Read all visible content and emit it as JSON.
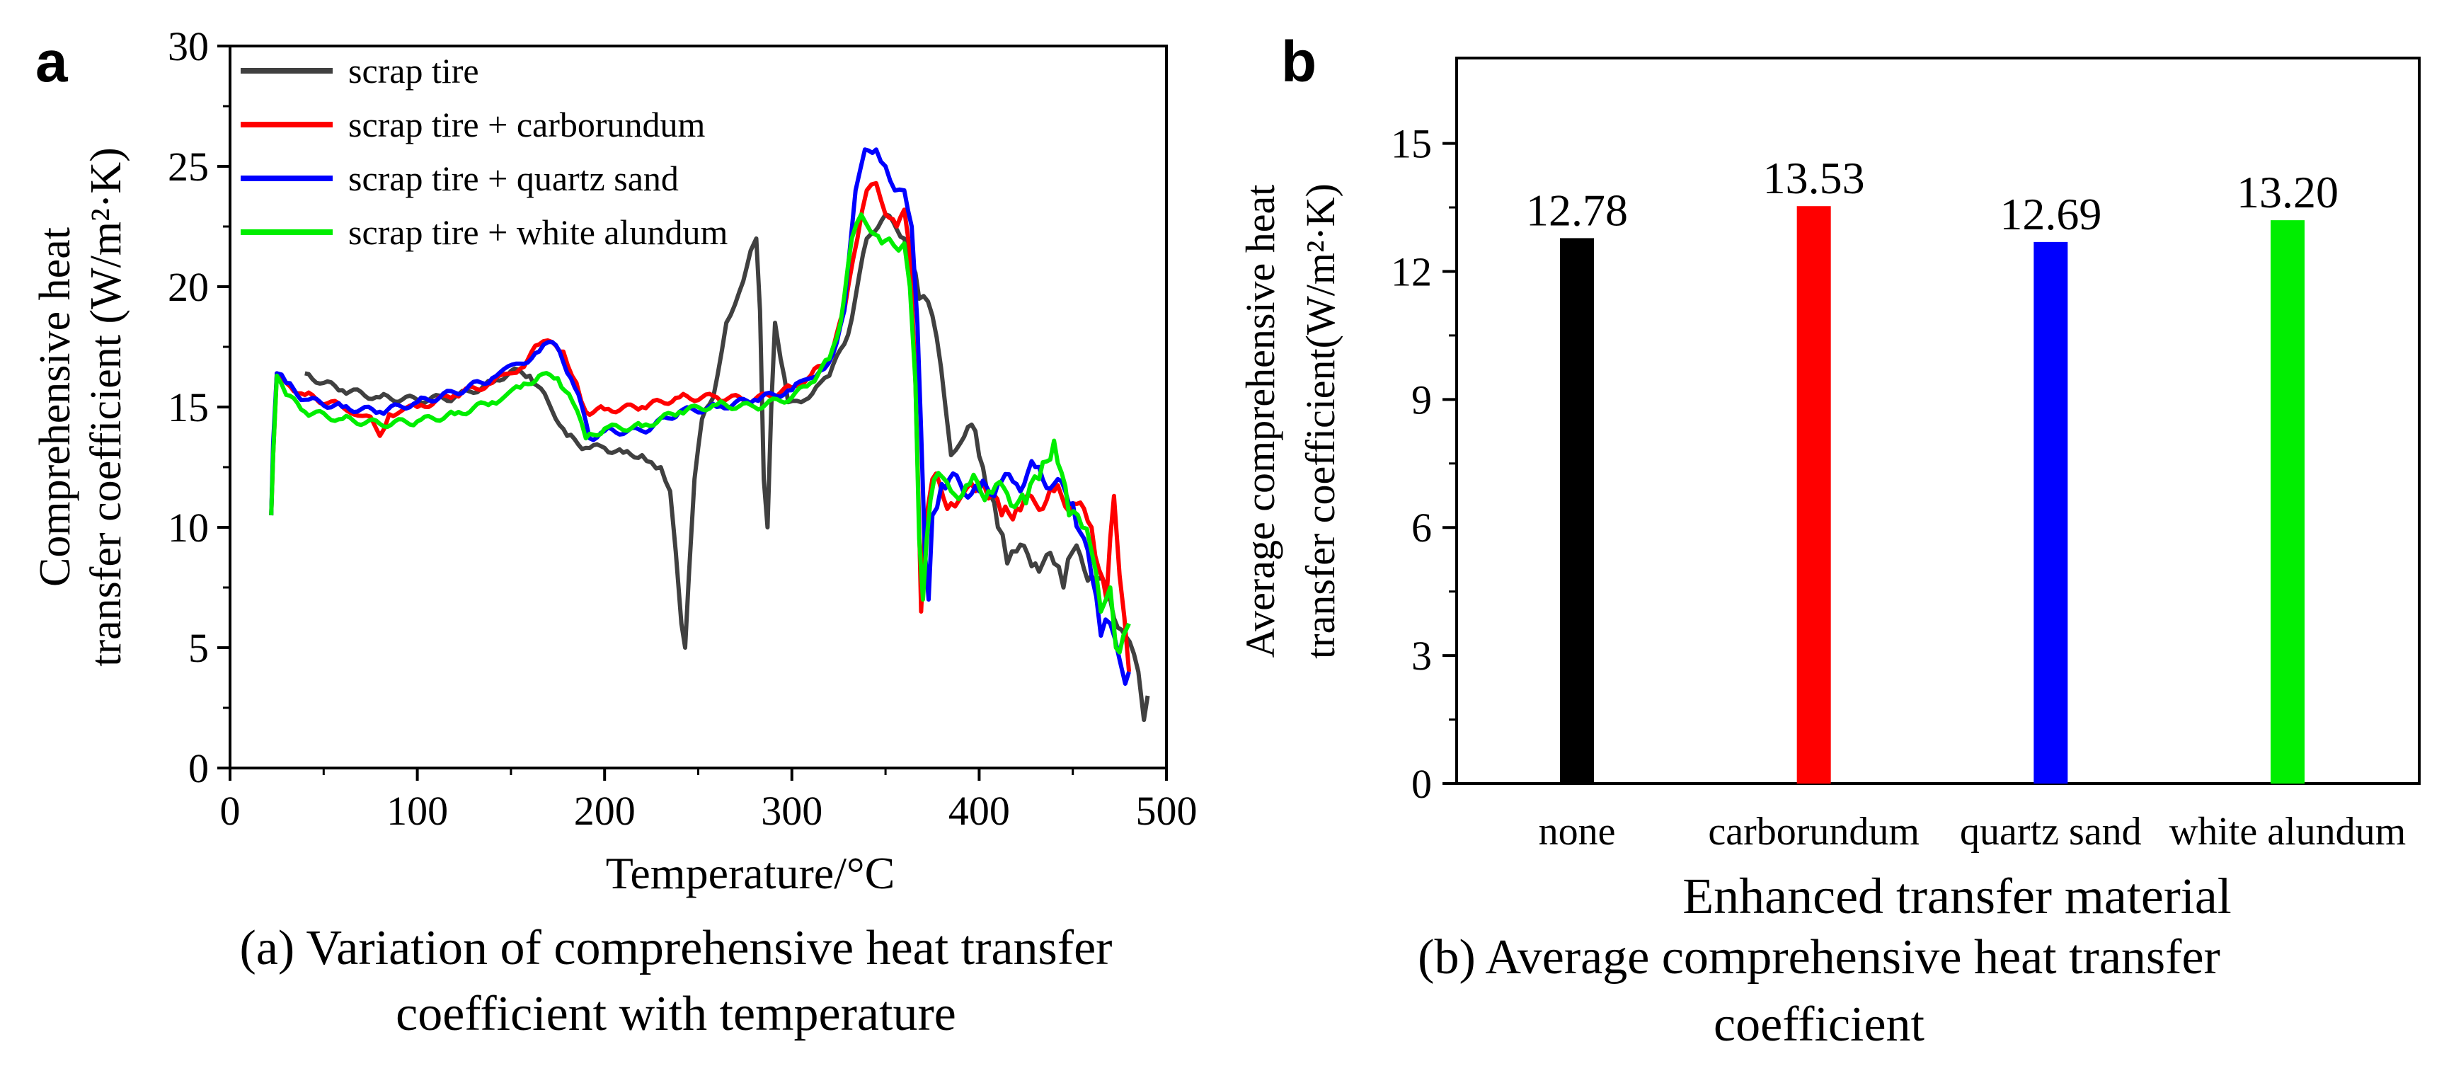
{
  "chart_data": [
    {
      "type": "line",
      "panel_label": "a",
      "xlabel": "Temperature/°C",
      "ylabel_line1": "Comprehensive heat",
      "ylabel_line2": "transfer coefficient (W/m²·K)",
      "xlim": [
        0,
        500
      ],
      "ylim": [
        0,
        30
      ],
      "x_ticks": [
        "0",
        "100",
        "200",
        "300",
        "400",
        "500"
      ],
      "y_ticks": [
        "0",
        "5",
        "10",
        "15",
        "20",
        "25",
        "30"
      ],
      "legend_position": "top-left",
      "caption_line1": "(a) Variation of comprehensive heat transfer",
      "caption_line2": "coefficient with temperature",
      "series": [
        {
          "name": "scrap tire",
          "color": "#404040",
          "points": [
            [
              40,
              16.4
            ],
            [
              50,
              16
            ],
            [
              60,
              15.7
            ],
            [
              80,
              15.4
            ],
            [
              100,
              15.3
            ],
            [
              120,
              15.4
            ],
            [
              140,
              16
            ],
            [
              150,
              16.5
            ],
            [
              160,
              16.3
            ],
            [
              170,
              15.2
            ],
            [
              180,
              13.8
            ],
            [
              190,
              13.3
            ],
            [
              200,
              13.3
            ],
            [
              210,
              13.1
            ],
            [
              220,
              13
            ],
            [
              225,
              12.7
            ],
            [
              230,
              12.5
            ],
            [
              235,
              11.5
            ],
            [
              238,
              9
            ],
            [
              241,
              6
            ],
            [
              243,
              5
            ],
            [
              245,
              8
            ],
            [
              248,
              12
            ],
            [
              252,
              14.5
            ],
            [
              258,
              15.4
            ],
            [
              265,
              18.5
            ],
            [
              272,
              19.8
            ],
            [
              278,
              21.5
            ],
            [
              281,
              22
            ],
            [
              283,
              19
            ],
            [
              285,
              12
            ],
            [
              287,
              10
            ],
            [
              289,
              15
            ],
            [
              291,
              18.5
            ],
            [
              294,
              17
            ],
            [
              298,
              15.2
            ],
            [
              305,
              15.2
            ],
            [
              315,
              16
            ],
            [
              320,
              16.3
            ],
            [
              330,
              18
            ],
            [
              340,
              22
            ],
            [
              350,
              23
            ],
            [
              360,
              22
            ],
            [
              368,
              19.5
            ],
            [
              375,
              18.8
            ],
            [
              382,
              15
            ],
            [
              385,
              13
            ],
            [
              390,
              13.5
            ],
            [
              398,
              14
            ],
            [
              402,
              12.5
            ],
            [
              410,
              10
            ],
            [
              415,
              8.5
            ],
            [
              420,
              9
            ],
            [
              430,
              8.5
            ],
            [
              440,
              8.5
            ],
            [
              445,
              7.5
            ],
            [
              450,
              9
            ],
            [
              460,
              8
            ],
            [
              470,
              7
            ],
            [
              478,
              5.5
            ],
            [
              485,
              4
            ],
            [
              488,
              2
            ],
            [
              490,
              3
            ]
          ]
        },
        {
          "name": "scrap tire + carborundum",
          "color": "#ff0000",
          "points": [
            [
              22,
              10.5
            ],
            [
              23,
              13
            ],
            [
              25,
              16.4
            ],
            [
              30,
              16
            ],
            [
              40,
              15.5
            ],
            [
              60,
              15
            ],
            [
              75,
              14.6
            ],
            [
              80,
              13.8
            ],
            [
              85,
              14.7
            ],
            [
              100,
              15
            ],
            [
              120,
              15.5
            ],
            [
              140,
              16
            ],
            [
              155,
              16.6
            ],
            [
              165,
              17.6
            ],
            [
              172,
              17.7
            ],
            [
              178,
              17.3
            ],
            [
              185,
              16
            ],
            [
              190,
              14.8
            ],
            [
              200,
              14.9
            ],
            [
              220,
              15
            ],
            [
              240,
              15.4
            ],
            [
              260,
              15.4
            ],
            [
              280,
              15.3
            ],
            [
              300,
              15.8
            ],
            [
              310,
              16.3
            ],
            [
              320,
              17
            ],
            [
              328,
              19
            ],
            [
              335,
              22
            ],
            [
              340,
              24
            ],
            [
              345,
              24.3
            ],
            [
              350,
              23
            ],
            [
              356,
              22.5
            ],
            [
              360,
              23.2
            ],
            [
              363,
              21.5
            ],
            [
              366,
              16
            ],
            [
              368,
              10
            ],
            [
              369,
              6.5
            ],
            [
              371,
              10
            ],
            [
              375,
              12
            ],
            [
              385,
              11
            ],
            [
              398,
              11.5
            ],
            [
              405,
              11.2
            ],
            [
              412,
              10.5
            ],
            [
              420,
              10.8
            ],
            [
              430,
              11
            ],
            [
              440,
              11.5
            ],
            [
              450,
              11
            ],
            [
              460,
              10
            ],
            [
              468,
              7
            ],
            [
              472,
              11.3
            ],
            [
              475,
              8
            ],
            [
              480,
              4
            ]
          ]
        },
        {
          "name": "scrap tire + quartz sand",
          "color": "#0000ff",
          "points": [
            [
              22,
              10.5
            ],
            [
              23,
              13.5
            ],
            [
              25,
              16.4
            ],
            [
              30,
              16
            ],
            [
              40,
              15.3
            ],
            [
              60,
              15
            ],
            [
              80,
              14.8
            ],
            [
              100,
              15.2
            ],
            [
              120,
              15.6
            ],
            [
              140,
              16.2
            ],
            [
              155,
              16.8
            ],
            [
              165,
              17.3
            ],
            [
              170,
              17.7
            ],
            [
              176,
              17.3
            ],
            [
              182,
              16.2
            ],
            [
              188,
              15
            ],
            [
              192,
              13.7
            ],
            [
              200,
              14
            ],
            [
              220,
              14
            ],
            [
              240,
              14.8
            ],
            [
              260,
              15
            ],
            [
              280,
              15.3
            ],
            [
              300,
              15.7
            ],
            [
              315,
              16.5
            ],
            [
              322,
              17.2
            ],
            [
              328,
              19
            ],
            [
              334,
              24
            ],
            [
              339,
              25.7
            ],
            [
              345,
              25.7
            ],
            [
              350,
              25
            ],
            [
              355,
              24
            ],
            [
              360,
              24
            ],
            [
              364,
              22.5
            ],
            [
              367,
              18.5
            ],
            [
              369,
              14
            ],
            [
              371,
              9
            ],
            [
              373,
              7
            ],
            [
              375,
              10.5
            ],
            [
              380,
              11.8
            ],
            [
              390,
              11.8
            ],
            [
              400,
              11.5
            ],
            [
              410,
              11.8
            ],
            [
              420,
              11.8
            ],
            [
              430,
              12.5
            ],
            [
              440,
              11.8
            ],
            [
              450,
              11
            ],
            [
              460,
              8
            ],
            [
              465,
              5.5
            ],
            [
              470,
              6
            ],
            [
              475,
              4.5
            ],
            [
              478,
              3.5
            ],
            [
              480,
              4
            ]
          ]
        },
        {
          "name": "scrap tire + white alundum",
          "color": "#00ee00",
          "points": [
            [
              22,
              10.5
            ],
            [
              23,
              13
            ],
            [
              25,
              16.3
            ],
            [
              30,
              15.5
            ],
            [
              40,
              14.8
            ],
            [
              60,
              14.5
            ],
            [
              80,
              14.3
            ],
            [
              100,
              14.4
            ],
            [
              120,
              14.7
            ],
            [
              140,
              15.2
            ],
            [
              155,
              15.8
            ],
            [
              165,
              16.3
            ],
            [
              175,
              16.2
            ],
            [
              183,
              15.2
            ],
            [
              190,
              13.7
            ],
            [
              200,
              14.1
            ],
            [
              220,
              14.2
            ],
            [
              240,
              14.8
            ],
            [
              260,
              15.1
            ],
            [
              280,
              15
            ],
            [
              300,
              15.4
            ],
            [
              310,
              16
            ],
            [
              320,
              17
            ],
            [
              326,
              18.5
            ],
            [
              332,
              22
            ],
            [
              337,
              23
            ],
            [
              342,
              22.3
            ],
            [
              348,
              21.8
            ],
            [
              352,
              22
            ],
            [
              357,
              21.5
            ],
            [
              360,
              21.8
            ],
            [
              363,
              20
            ],
            [
              366,
              16
            ],
            [
              368,
              9.5
            ],
            [
              370,
              7
            ],
            [
              372,
              9.5
            ],
            [
              376,
              12
            ],
            [
              385,
              11.5
            ],
            [
              395,
              11.8
            ],
            [
              405,
              11.5
            ],
            [
              415,
              11.4
            ],
            [
              425,
              11
            ],
            [
              432,
              12
            ],
            [
              440,
              13.6
            ],
            [
              448,
              10.5
            ],
            [
              455,
              10
            ],
            [
              460,
              9
            ],
            [
              465,
              6.5
            ],
            [
              470,
              7.5
            ],
            [
              473,
              5
            ],
            [
              477,
              5.5
            ],
            [
              480,
              6
            ]
          ]
        }
      ]
    },
    {
      "type": "bar",
      "panel_label": "b",
      "xlabel": "Enhanced transfer material",
      "ylabel_line1": "Average comprehensive heat",
      "ylabel_line2": "transfer coefficient(W/m²·K)",
      "ylim": [
        0,
        17
      ],
      "y_ticks": [
        "0",
        "3",
        "6",
        "9",
        "12",
        "15"
      ],
      "categories": [
        "none",
        "carborundum",
        "quartz sand",
        "white alundum"
      ],
      "values": [
        12.78,
        13.53,
        12.69,
        13.2
      ],
      "value_labels": [
        "12.78",
        "13.53",
        "12.69",
        "13.20"
      ],
      "colors": [
        "#000000",
        "#ff0000",
        "#0000ff",
        "#00ee00"
      ],
      "caption_line1": "(b) Average comprehensive heat transfer",
      "caption_line2": "coefficient"
    }
  ]
}
